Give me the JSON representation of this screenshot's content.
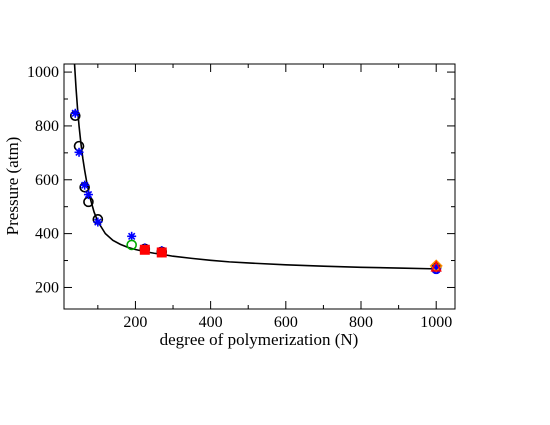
{
  "chart_data": {
    "type": "scatter",
    "title": "",
    "xlabel": "degree of polymerization (N)",
    "ylabel": "Pressure (atm)",
    "xlim": [
      10,
      1050
    ],
    "ylim": [
      120,
      1030
    ],
    "xticks": [
      200,
      400,
      600,
      800,
      1000
    ],
    "yticks": [
      200,
      400,
      600,
      800,
      1000
    ],
    "legend": "none",
    "grid": false,
    "fit_curve": {
      "name": "",
      "color": "#000000",
      "x": [
        38,
        42,
        46,
        50,
        55,
        60,
        65,
        70,
        75,
        80,
        90,
        100,
        120,
        140,
        160,
        180,
        200,
        225,
        250,
        275,
        300,
        350,
        400,
        450,
        500,
        600,
        700,
        800,
        900,
        1000
      ],
      "y": [
        1030,
        940,
        865,
        800,
        735,
        680,
        635,
        595,
        560,
        530,
        480,
        445,
        400,
        375,
        360,
        349,
        341,
        333,
        327,
        322,
        316,
        308,
        301,
        295,
        291,
        284,
        279,
        275,
        272,
        269
      ]
    },
    "series": [
      {
        "name": "",
        "marker": "circle-open",
        "color": "#000000",
        "x": [
          40,
          50,
          65,
          75,
          100,
          225,
          270,
          1000
        ],
        "y": [
          838,
          725,
          572,
          518,
          453,
          343,
          332,
          275
        ]
      },
      {
        "name": "",
        "marker": "asterisk",
        "color": "#0000ff",
        "x": [
          40,
          50,
          65,
          75,
          100,
          190,
          225,
          270
        ],
        "y": [
          847,
          702,
          580,
          545,
          443,
          390,
          347,
          337
        ]
      },
      {
        "name": "",
        "marker": "circle-open",
        "color": "#00aa00",
        "x": [
          190
        ],
        "y": [
          358
        ]
      },
      {
        "name": "",
        "marker": "square-filled",
        "color": "#ff0000",
        "x": [
          225,
          270
        ],
        "y": [
          340,
          330
        ]
      },
      {
        "name": "",
        "marker": "circle-filled",
        "color": "#0000ff",
        "x": [
          1000
        ],
        "y": [
          268
        ]
      },
      {
        "name": "",
        "marker": "diamond-open",
        "color": "#ff8c00",
        "x": [
          1000
        ],
        "y": [
          280
        ]
      },
      {
        "name": "",
        "marker": "triangle-open",
        "color": "#ff0000",
        "x": [
          1000
        ],
        "y": [
          278
        ]
      }
    ]
  }
}
